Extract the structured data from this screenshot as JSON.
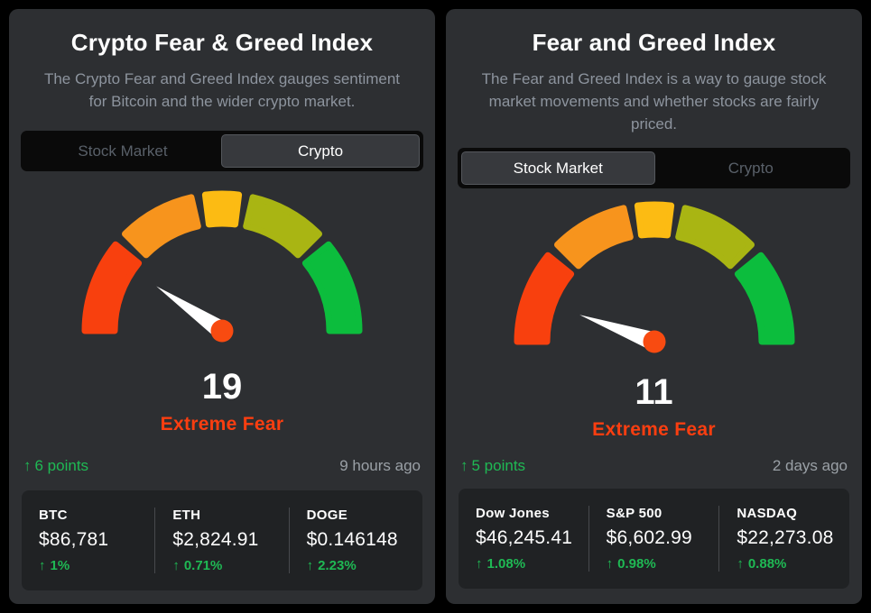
{
  "panels": [
    {
      "title": "Crypto Fear & Greed Index",
      "description": "The Crypto Fear and Greed Index gauges sentiment for Bitcoin and the wider crypto market.",
      "tabs": [
        {
          "label": "Stock Market",
          "selected": false
        },
        {
          "label": "Crypto",
          "selected": true
        }
      ],
      "gauge": {
        "value": 19,
        "min": 0,
        "max": 100,
        "label": "Extreme Fear"
      },
      "change": {
        "arrow": "↑",
        "text": "6 points",
        "direction": "up"
      },
      "updated": "9 hours ago",
      "stats": [
        {
          "name": "BTC",
          "value": "$86,781",
          "arrow": "↑",
          "change": "1%"
        },
        {
          "name": "ETH",
          "value": "$2,824.91",
          "arrow": "↑",
          "change": "0.71%"
        },
        {
          "name": "DOGE",
          "value": "$0.146148",
          "arrow": "↑",
          "change": "2.23%"
        }
      ]
    },
    {
      "title": "Fear and Greed Index",
      "description": "The Fear and Greed Index is a way to gauge stock market movements and whether stocks are fairly priced.",
      "tabs": [
        {
          "label": "Stock Market",
          "selected": true
        },
        {
          "label": "Crypto",
          "selected": false
        }
      ],
      "gauge": {
        "value": 11,
        "min": 0,
        "max": 100,
        "label": "Extreme Fear"
      },
      "change": {
        "arrow": "↑",
        "text": "5 points",
        "direction": "up"
      },
      "updated": "2 days ago",
      "stats": [
        {
          "name": "Dow Jones",
          "value": "$46,245.41",
          "arrow": "↑",
          "change": "1.08%"
        },
        {
          "name": "S&P 500",
          "value": "$6,602.99",
          "arrow": "↑",
          "change": "0.98%"
        },
        {
          "name": "NASDAQ",
          "value": "$22,273.08",
          "arrow": "↑",
          "change": "0.88%"
        }
      ]
    }
  ],
  "colors": {
    "gauge_segments": [
      "#f8400e",
      "#f7941d",
      "#fcbb13",
      "#a9b513",
      "#0cbd3d"
    ],
    "needle": "#ffffff",
    "needle_pivot": "#f84b11",
    "sentiment_text": "#fb3e10",
    "positive_green": "#1fb954",
    "timestamp_gray": "#9aa0a6"
  }
}
